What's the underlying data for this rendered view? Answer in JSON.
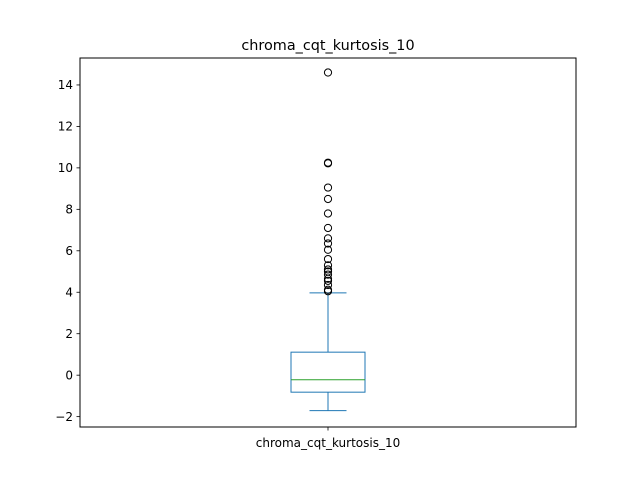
{
  "chart_data": {
    "type": "box",
    "title": "chroma_cqt_kurtosis_10",
    "categories": [
      "chroma_cqt_kurtosis_10"
    ],
    "xlabel": "",
    "ylabel": "",
    "ylim": [
      -2.5,
      15.3
    ],
    "yticks": [
      -2,
      0,
      2,
      4,
      6,
      8,
      10,
      12,
      14
    ],
    "ytick_labels": [
      "−2",
      "0",
      "2",
      "4",
      "6",
      "8",
      "10",
      "12",
      "14"
    ],
    "grid": false,
    "legend": "none",
    "box": {
      "whisker_low": -1.71,
      "q1": -0.82,
      "median": -0.22,
      "q3": 1.11,
      "whisker_high": 3.97
    },
    "outliers": [
      4.05,
      4.12,
      4.35,
      4.55,
      4.65,
      4.85,
      5.0,
      5.1,
      5.3,
      5.6,
      6.05,
      6.35,
      6.6,
      7.1,
      7.8,
      8.5,
      9.05,
      10.22,
      10.25,
      14.6
    ],
    "colors": {
      "box": "#1f77b4",
      "median": "#2ca02c",
      "outlier": "#000000",
      "axes": "#000000"
    }
  }
}
